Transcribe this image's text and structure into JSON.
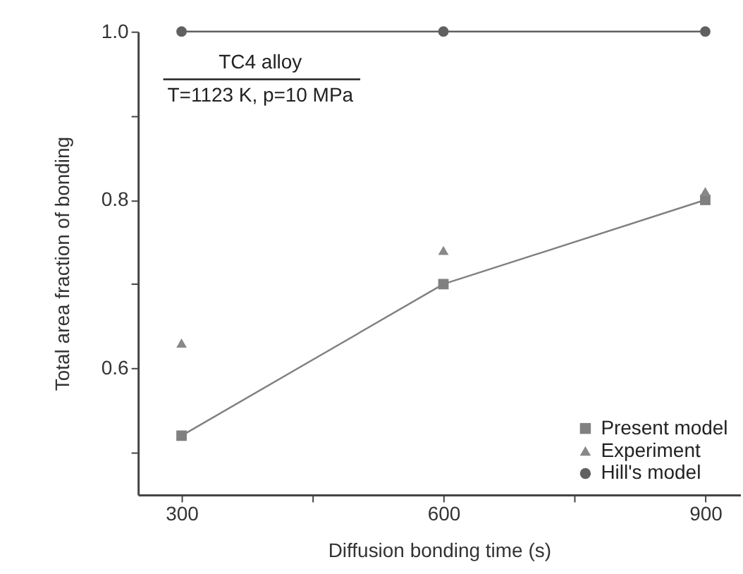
{
  "chart_data": {
    "type": "line",
    "xlabel": "Diffusion bonding time (s)",
    "ylabel": "Total area fraction of bonding",
    "x": [
      300,
      600,
      900
    ],
    "series": [
      {
        "name": "Present model",
        "color": "#808080",
        "values": [
          0.52,
          0.7,
          0.8
        ],
        "marker": "square"
      },
      {
        "name": "Experiment",
        "color": "#888888",
        "values": [
          0.63,
          0.74,
          0.81
        ],
        "marker": "triangle",
        "type": "scatter"
      },
      {
        "name": "Hill's model",
        "color": "#606060",
        "values": [
          1.0,
          1.0,
          1.0
        ],
        "marker": "circle"
      }
    ],
    "xlim": [
      250,
      940
    ],
    "xticks": [
      300,
      {
        "value": 450,
        "label": null
      },
      600,
      {
        "value": 750,
        "label": null
      },
      900
    ],
    "ylim": [
      0.45,
      1.0
    ],
    "yticks": [
      {
        "value": 0.5,
        "label": null
      },
      0.6,
      {
        "value": 0.7,
        "label": null
      },
      0.8,
      {
        "value": 0.9,
        "label": null
      },
      {
        "value": 1.0,
        "label": "1.0"
      }
    ],
    "line_style": "solid",
    "annotations": [
      "TC4 alloy",
      "T=1123 K, p=10 MPa"
    ],
    "grid": false,
    "legend": "bottom right"
  }
}
